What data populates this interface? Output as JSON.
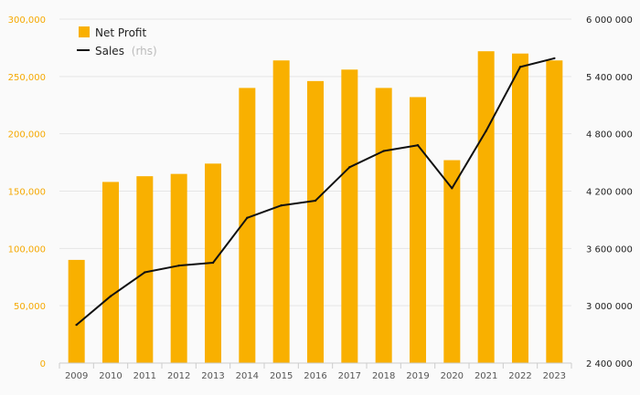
{
  "colors": {
    "bar": "#f9b000",
    "line": "#111111",
    "grid": "#e6e6e6",
    "left_axis_text": "#f5a800"
  },
  "legend": {
    "net_profit_label": "Net Profit",
    "sales_label": "Sales",
    "sales_suffix": "(rhs)"
  },
  "chart_data": {
    "type": "bar",
    "categories": [
      "2009",
      "2010",
      "2011",
      "2012",
      "2013",
      "2014",
      "2015",
      "2016",
      "2017",
      "2018",
      "2019",
      "2020",
      "2021",
      "2022",
      "2023"
    ],
    "series": [
      {
        "name": "Net Profit",
        "type": "bar",
        "axis": "left",
        "values": [
          90000,
          158000,
          163000,
          165000,
          174000,
          240000,
          264000,
          246000,
          256000,
          240000,
          232000,
          177000,
          272000,
          270000,
          264000
        ]
      },
      {
        "name": "Sales",
        "type": "line",
        "axis": "right",
        "values": [
          2800000,
          3100000,
          3350000,
          3420000,
          3450000,
          3920000,
          4050000,
          4100000,
          4450000,
          4620000,
          4680000,
          4230000,
          4830000,
          5500000,
          5590000
        ]
      }
    ],
    "left_axis": {
      "ylim": [
        0,
        300000
      ],
      "ticks": [
        0,
        50000,
        100000,
        150000,
        200000,
        250000,
        300000
      ],
      "tick_labels": [
        "0",
        "50,000",
        "100,000",
        "150,000",
        "200,000",
        "250,000",
        "300,000"
      ]
    },
    "right_axis": {
      "ylim": [
        2400000,
        6000000
      ],
      "ticks": [
        2400000,
        3000000,
        3600000,
        4200000,
        4800000,
        5400000,
        6000000
      ],
      "tick_labels": [
        "2 400 000",
        "3 000 000",
        "3 600 000",
        "4 200 000",
        "4 800 000",
        "5 400 000",
        "6 000 000"
      ]
    },
    "grid": true,
    "legend_position": "top-left"
  }
}
